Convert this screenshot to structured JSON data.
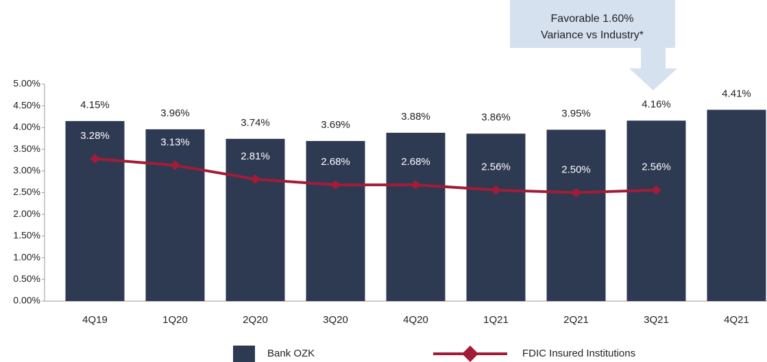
{
  "chart_data": {
    "type": "bar",
    "annotation": [
      "Favorable 1.60%",
      "Variance vs Industry*"
    ],
    "categories": [
      "4Q19",
      "1Q20",
      "2Q20",
      "3Q20",
      "4Q20",
      "1Q21",
      "2Q21",
      "3Q21",
      "4Q21"
    ],
    "series": [
      {
        "name": "Bank OZK",
        "type": "bar",
        "color": "#2e3a52",
        "values": [
          4.15,
          3.96,
          3.74,
          3.69,
          3.88,
          3.86,
          3.95,
          4.16,
          4.41
        ],
        "value_labels": [
          "4.15%",
          "3.96%",
          "3.74%",
          "3.69%",
          "3.88%",
          "3.86%",
          "3.95%",
          "4.16%",
          "4.41%"
        ]
      },
      {
        "name": "FDIC Insured Institutions",
        "type": "line",
        "color": "#a31c37",
        "values": [
          3.28,
          3.13,
          2.81,
          2.68,
          2.68,
          2.56,
          2.5,
          2.56,
          null
        ],
        "value_labels": [
          "3.28%",
          "3.13%",
          "2.81%",
          "2.68%",
          "2.68%",
          "2.56%",
          "2.50%",
          "2.56%",
          null
        ]
      }
    ],
    "ylim": [
      0,
      5
    ],
    "yticks": [
      {
        "value": 0,
        "label": "0.00%"
      },
      {
        "value": 0.5,
        "label": "0.50%"
      },
      {
        "value": 1,
        "label": "1.00%"
      },
      {
        "value": 1.5,
        "label": "1.50%"
      },
      {
        "value": 2,
        "label": "2.00%"
      },
      {
        "value": 2.5,
        "label": "2.50%"
      },
      {
        "value": 3,
        "label": "3.00%"
      },
      {
        "value": 3.5,
        "label": "3.50%"
      },
      {
        "value": 4,
        "label": "4.00%"
      },
      {
        "value": 4.5,
        "label": "4.50%"
      },
      {
        "value": 5,
        "label": "5.00%"
      }
    ],
    "legend": "bottom"
  }
}
